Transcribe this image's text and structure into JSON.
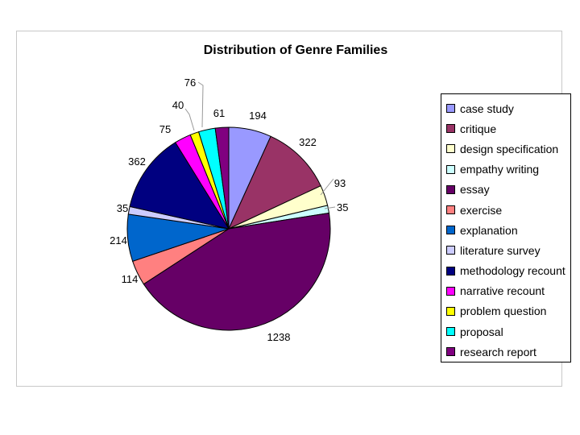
{
  "chart_data": {
    "type": "pie",
    "title": "Distribution of Genre Families",
    "legend_position": "right",
    "start_angle": "12 o'clock",
    "direction": "clockwise",
    "slices": [
      {
        "name": "case study",
        "value": 194,
        "label": "194",
        "color": "#9999ff"
      },
      {
        "name": "critique",
        "value": 322,
        "label": "322",
        "color": "#993366"
      },
      {
        "name": "design specification",
        "value": 93,
        "label": "93",
        "color": "#ffffcc"
      },
      {
        "name": "empathy writing",
        "value": 35,
        "label": "35",
        "color": "#ccffff"
      },
      {
        "name": "essay",
        "value": 1238,
        "label": "1238",
        "color": "#660066"
      },
      {
        "name": "exercise",
        "value": 114,
        "label": "114",
        "color": "#ff8080"
      },
      {
        "name": "explanation",
        "value": 214,
        "label": "214",
        "color": "#0066cc"
      },
      {
        "name": "literature survey",
        "value": 35,
        "label": "35",
        "color": "#ccccff"
      },
      {
        "name": "methodology recount",
        "value": 362,
        "label": "362",
        "color": "#000080"
      },
      {
        "name": "narrative recount",
        "value": 75,
        "label": "75",
        "color": "#ff00ff"
      },
      {
        "name": "problem question",
        "value": 40,
        "label": "40",
        "color": "#ffff00"
      },
      {
        "name": "proposal",
        "value": 76,
        "label": "76",
        "color": "#00ffff"
      },
      {
        "name": "research report",
        "value": 61,
        "label": "61",
        "color": "#800080"
      }
    ]
  }
}
